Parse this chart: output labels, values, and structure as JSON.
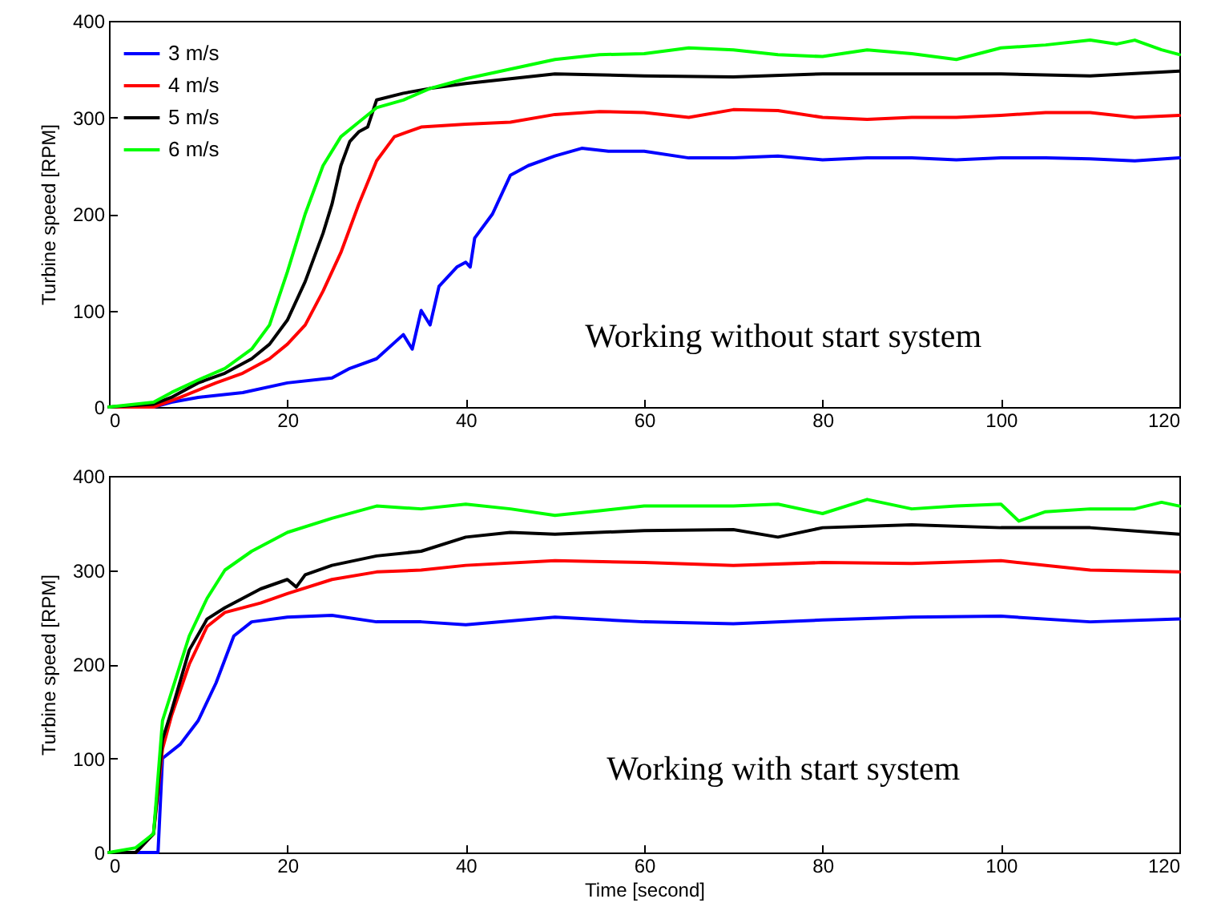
{
  "chart_data": [
    {
      "type": "line",
      "ylabel": "Turbine speed [RPM]",
      "xlim": [
        0,
        120
      ],
      "ylim": [
        0,
        400
      ],
      "xticks": [
        0,
        20,
        40,
        60,
        80,
        100,
        120
      ],
      "yticks": [
        0,
        100,
        200,
        300,
        400
      ],
      "grid": false,
      "legend": "top left",
      "marker": "none",
      "line_style": "solid",
      "annotations": [
        "Working without start system"
      ],
      "series": [
        {
          "name": "3 m/s",
          "color": "#0000ff",
          "x": [
            0,
            5,
            7,
            10,
            15,
            20,
            25,
            27,
            30,
            33,
            34,
            35,
            36,
            37,
            39,
            40,
            40.5,
            41,
            43,
            45,
            47,
            50,
            53,
            56,
            60,
            65,
            70,
            75,
            80,
            85,
            90,
            95,
            100,
            105,
            110,
            115,
            120
          ],
          "values": [
            0,
            0,
            5,
            10,
            15,
            25,
            30,
            40,
            50,
            75,
            60,
            100,
            85,
            125,
            145,
            150,
            145,
            175,
            200,
            240,
            250,
            260,
            268,
            265,
            265,
            258,
            258,
            260,
            256,
            258,
            258,
            256,
            258,
            258,
            257,
            255,
            258
          ]
        },
        {
          "name": "4 m/s",
          "color": "#ff0000",
          "x": [
            0,
            5,
            8,
            12,
            15,
            18,
            20,
            22,
            24,
            26,
            28,
            30,
            32,
            35,
            40,
            45,
            50,
            55,
            60,
            65,
            70,
            75,
            80,
            85,
            90,
            95,
            100,
            105,
            110,
            115,
            120
          ],
          "values": [
            0,
            0,
            10,
            25,
            35,
            50,
            65,
            85,
            120,
            160,
            210,
            255,
            280,
            290,
            293,
            295,
            303,
            306,
            305,
            300,
            308,
            307,
            300,
            298,
            300,
            300,
            302,
            305,
            305,
            300,
            302
          ]
        },
        {
          "name": "5 m/s",
          "color": "#000000",
          "x": [
            0,
            5,
            7,
            10,
            13,
            16,
            18,
            20,
            22,
            24,
            25,
            26,
            27,
            28,
            29,
            30,
            33,
            36,
            40,
            45,
            50,
            60,
            70,
            80,
            90,
            100,
            110,
            120
          ],
          "values": [
            0,
            3,
            10,
            25,
            35,
            50,
            65,
            90,
            130,
            180,
            210,
            250,
            275,
            285,
            290,
            318,
            325,
            330,
            335,
            340,
            345,
            343,
            342,
            345,
            345,
            345,
            343,
            348
          ]
        },
        {
          "name": "6 m/s",
          "color": "#00ff00",
          "x": [
            0,
            5,
            7,
            10,
            13,
            16,
            18,
            20,
            21,
            22,
            24,
            26,
            28,
            30,
            33,
            36,
            40,
            45,
            50,
            55,
            60,
            65,
            70,
            75,
            80,
            85,
            90,
            95,
            100,
            105,
            110,
            113,
            115,
            118,
            120
          ],
          "values": [
            0,
            5,
            15,
            28,
            40,
            60,
            85,
            140,
            170,
            200,
            250,
            280,
            295,
            310,
            318,
            330,
            340,
            350,
            360,
            365,
            366,
            372,
            370,
            365,
            363,
            370,
            366,
            360,
            372,
            375,
            380,
            376,
            380,
            370,
            365
          ]
        }
      ]
    },
    {
      "type": "line",
      "xlabel": "Time [second]",
      "ylabel": "Turbine speed [RPM]",
      "xlim": [
        0,
        120
      ],
      "ylim": [
        0,
        400
      ],
      "xticks": [
        0,
        20,
        40,
        60,
        80,
        100,
        120
      ],
      "yticks": [
        0,
        100,
        200,
        300,
        400
      ],
      "grid": false,
      "marker": "none",
      "line_style": "solid",
      "annotations": [
        "Working with start system"
      ],
      "series": [
        {
          "color": "#0000ff",
          "x": [
            0,
            5,
            5.5,
            6,
            8,
            10,
            12,
            14,
            16,
            20,
            25,
            30,
            35,
            40,
            50,
            60,
            70,
            80,
            90,
            100,
            110,
            120
          ],
          "values": [
            0,
            0,
            0,
            100,
            115,
            140,
            180,
            230,
            245,
            250,
            252,
            245,
            245,
            242,
            250,
            245,
            243,
            247,
            250,
            251,
            245,
            248
          ]
        },
        {
          "color": "#ff0000",
          "x": [
            0,
            3,
            5,
            6,
            7,
            9,
            11,
            13,
            17,
            20,
            25,
            30,
            35,
            40,
            50,
            60,
            70,
            80,
            90,
            100,
            110,
            120
          ],
          "values": [
            0,
            0,
            20,
            110,
            145,
            200,
            240,
            255,
            265,
            275,
            290,
            298,
            300,
            305,
            310,
            308,
            305,
            308,
            307,
            310,
            300,
            298
          ]
        },
        {
          "color": "#000000",
          "x": [
            0,
            3,
            5,
            6,
            7,
            9,
            11,
            13,
            17,
            20,
            21,
            22,
            25,
            30,
            35,
            40,
            45,
            50,
            60,
            70,
            75,
            80,
            90,
            100,
            110,
            120
          ],
          "values": [
            0,
            0,
            20,
            120,
            150,
            215,
            248,
            260,
            280,
            290,
            282,
            295,
            305,
            315,
            320,
            335,
            340,
            338,
            342,
            343,
            335,
            345,
            348,
            345,
            345,
            338
          ]
        },
        {
          "color": "#00ff00",
          "x": [
            0,
            3,
            5,
            6,
            7,
            9,
            11,
            13,
            16,
            20,
            25,
            30,
            35,
            40,
            45,
            50,
            55,
            60,
            70,
            75,
            80,
            85,
            90,
            95,
            100,
            102,
            105,
            110,
            115,
            118,
            120
          ],
          "values": [
            0,
            5,
            20,
            140,
            170,
            230,
            270,
            300,
            320,
            340,
            355,
            368,
            365,
            370,
            365,
            358,
            363,
            368,
            368,
            370,
            360,
            375,
            365,
            368,
            370,
            352,
            362,
            365,
            365,
            372,
            368
          ]
        }
      ]
    }
  ]
}
